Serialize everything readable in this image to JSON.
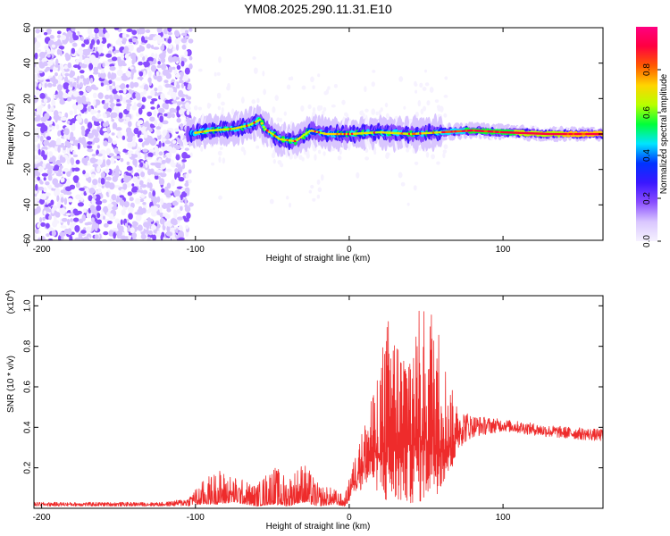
{
  "chart_data": [
    {
      "type": "heatmap",
      "title": "YM08.2025.290.11.31.E10",
      "xlabel": "Height of straight line (km)",
      "ylabel": "Frequency (Hz)",
      "xlim": [
        -205,
        165
      ],
      "ylim": [
        -60,
        60
      ],
      "xticks": [
        -200,
        -100,
        0,
        100
      ],
      "xtick_labels": [
        "-200",
        "-100",
        "0",
        "100"
      ],
      "yticks": [
        60,
        40,
        20,
        0,
        -20,
        -40,
        -60
      ],
      "ytick_labels": [
        "60",
        "40",
        "20",
        "0",
        "-20",
        "-40",
        "-60"
      ],
      "colorbar": {
        "label": "Normalized spectral amplitude",
        "range": [
          0,
          1
        ],
        "ticks": [
          0.0,
          0.2,
          0.4,
          0.6,
          0.8
        ],
        "tick_labels": [
          "0.0",
          "0.2",
          "0.4",
          "0.6",
          "0.8"
        ],
        "colors": [
          "#f6f2ff",
          "#d9c6ff",
          "#8a4dff",
          "#3a17ff",
          "#0033ff",
          "#00e5ff",
          "#00ff3a",
          "#b8ff00",
          "#ffd400",
          "#ff5a00",
          "#ff0040",
          "#ff0080"
        ]
      },
      "regions": [
        {
          "name": "noise",
          "x_range": [
            -205,
            -103
          ],
          "note_level": 0.25
        },
        {
          "name": "signal-band",
          "center_freq_points": [
            [
              -105,
              0
            ],
            [
              -90,
              2
            ],
            [
              -75,
              3
            ],
            [
              -65,
              5
            ],
            [
              -58,
              8
            ],
            [
              -55,
              3
            ],
            [
              -45,
              -3
            ],
            [
              -35,
              -4
            ],
            [
              -25,
              2
            ],
            [
              -15,
              0
            ],
            [
              0,
              0
            ],
            [
              20,
              1
            ],
            [
              40,
              0
            ],
            [
              60,
              1
            ],
            [
              80,
              2
            ],
            [
              100,
              1
            ],
            [
              130,
              0
            ],
            [
              165,
              0
            ]
          ]
        }
      ]
    },
    {
      "type": "line",
      "xlabel": "Height of straight line (km)",
      "ylabel": "SNR (10 * v/v)",
      "exponent_label": "(x10",
      "exponent_power": "4",
      "exponent_close": ")",
      "xlim": [
        -205,
        165
      ],
      "ylim": [
        0,
        1.05
      ],
      "xticks": [
        -200,
        -100,
        0,
        100
      ],
      "xtick_labels": [
        "-200",
        "-100",
        "0",
        "100"
      ],
      "yticks": [
        0.2,
        0.4,
        0.6,
        0.8,
        1.0
      ],
      "ytick_labels": [
        "0.2",
        "0.4",
        "0.6",
        "0.8",
        "1.0"
      ],
      "series": [
        {
          "name": "SNR",
          "color": "#ee2b2b",
          "envelope": [
            [
              -205,
              0.01,
              0.03
            ],
            [
              -120,
              0.01,
              0.03
            ],
            [
              -105,
              0.01,
              0.05
            ],
            [
              -95,
              0.02,
              0.14
            ],
            [
              -85,
              0.02,
              0.2
            ],
            [
              -75,
              0.03,
              0.16
            ],
            [
              -60,
              0.01,
              0.12
            ],
            [
              -50,
              0.02,
              0.22
            ],
            [
              -40,
              0.01,
              0.16
            ],
            [
              -30,
              0.03,
              0.24
            ],
            [
              -20,
              0.01,
              0.12
            ],
            [
              -10,
              0.02,
              0.1
            ],
            [
              -3,
              0.01,
              0.06
            ],
            [
              5,
              0.08,
              0.3
            ],
            [
              15,
              0.12,
              0.55
            ],
            [
              25,
              0.0,
              0.95
            ],
            [
              35,
              0.02,
              0.82
            ],
            [
              45,
              0.02,
              0.98
            ],
            [
              55,
              0.05,
              1.02
            ],
            [
              65,
              0.15,
              0.62
            ],
            [
              72,
              0.3,
              0.5
            ],
            [
              80,
              0.35,
              0.46
            ],
            [
              100,
              0.38,
              0.44
            ],
            [
              130,
              0.35,
              0.41
            ],
            [
              165,
              0.33,
              0.39
            ]
          ]
        }
      ]
    }
  ]
}
